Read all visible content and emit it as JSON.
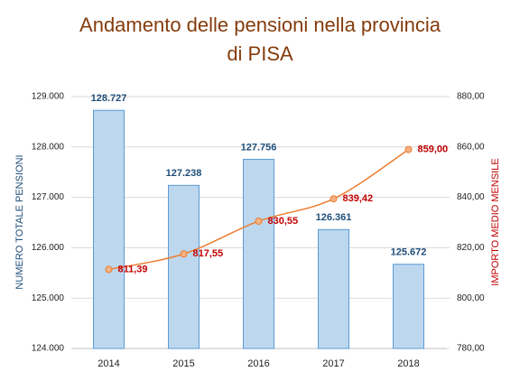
{
  "chart_data": {
    "type": "bar-line",
    "title": "Andamento delle pensioni nella provincia di PISA",
    "y_label": "NUMERO TOTALE PENSIONI",
    "y2_label": "IMPORTO MEDIO MENSILE",
    "categories": [
      "2014",
      "2015",
      "2016",
      "2017",
      "2018"
    ],
    "ylim": [
      124000,
      129000
    ],
    "yticks": [
      {
        "value": 124000,
        "label": "124.000"
      },
      {
        "value": 125000,
        "label": "125.000"
      },
      {
        "value": 126000,
        "label": "126.000"
      },
      {
        "value": 127000,
        "label": "127.000"
      },
      {
        "value": 128000,
        "label": "128.000"
      },
      {
        "value": 129000,
        "label": "129.000"
      }
    ],
    "y2lim": [
      780,
      880
    ],
    "y2ticks": [
      {
        "value": 780,
        "label": "780,00"
      },
      {
        "value": 800,
        "label": "800,00"
      },
      {
        "value": 820,
        "label": "820,00"
      },
      {
        "value": 840,
        "label": "840,00"
      },
      {
        "value": 860,
        "label": "860,00"
      },
      {
        "value": 880,
        "label": "880,00"
      }
    ],
    "grid": true,
    "series": [
      {
        "type": "bar",
        "color": "#bdd7ee",
        "values": [
          128727,
          127238,
          127756,
          126361,
          125672
        ],
        "value_labels": [
          "128.727",
          "127.238",
          "127.756",
          "126.361",
          "125.672"
        ]
      },
      {
        "type": "line",
        "axis": "y2",
        "color": "#ed7d31",
        "values": [
          811.39,
          817.55,
          830.55,
          839.42,
          859.0
        ],
        "value_labels": [
          "811,39",
          "817,55",
          "830,55",
          "839,42",
          "859,00"
        ]
      }
    ]
  }
}
